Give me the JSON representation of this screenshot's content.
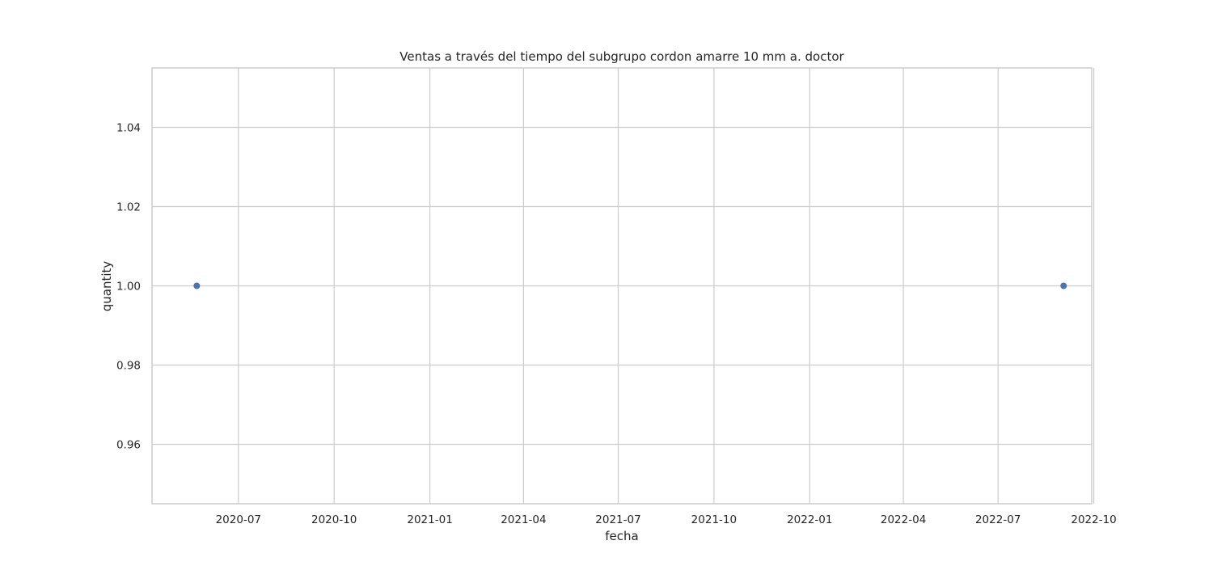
{
  "chart_data": {
    "type": "scatter",
    "title": "Ventas a través del tiempo del subgrupo cordon amarre 10 mm a. doctor",
    "xlabel": "fecha",
    "ylabel": "quantity",
    "x_type": "date",
    "xlim": [
      "2020-04-09",
      "2022-09-29"
    ],
    "ylim": [
      0.945,
      1.055
    ],
    "xticks": [
      "2020-07-01",
      "2020-10-01",
      "2021-01-01",
      "2021-04-01",
      "2021-07-01",
      "2021-10-01",
      "2022-01-01",
      "2022-04-01",
      "2022-07-01",
      "2022-10-01"
    ],
    "xtick_labels": [
      "2020-07",
      "2020-10",
      "2021-01",
      "2021-04",
      "2021-07",
      "2021-10",
      "2022-01",
      "2022-04",
      "2022-07",
      "2022-10"
    ],
    "yticks": [
      0.96,
      0.98,
      1.0,
      1.02,
      1.04
    ],
    "ytick_labels": [
      "0.96",
      "0.98",
      "1.00",
      "1.02",
      "1.04"
    ],
    "grid": true,
    "legend": "none",
    "point_color": "#4c72b0",
    "points": [
      {
        "x": "2020-05-22",
        "y": 1.0
      },
      {
        "x": "2022-09-02",
        "y": 1.0
      }
    ]
  }
}
